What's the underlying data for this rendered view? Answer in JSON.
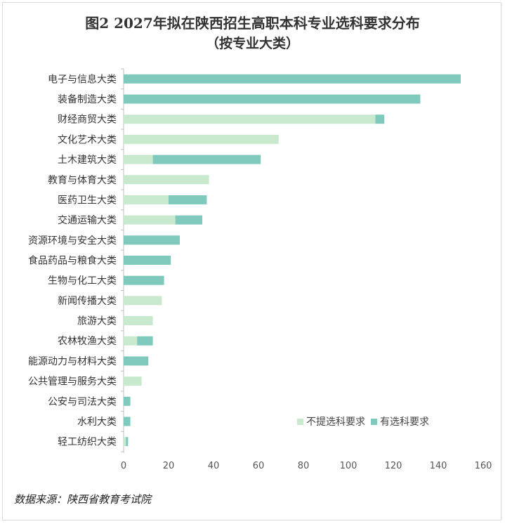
{
  "title": "图2 2027年拟在陕西招生高职本科专业选科要求分布",
  "subtitle": "（按专业大类）",
  "source": "数据来源：陕西省教育考试院",
  "colors": {
    "no_req": "#c9e9cf",
    "has_req": "#7fc9bd",
    "axis": "#bfbfbf"
  },
  "chart_data": {
    "type": "bar",
    "orientation": "horizontal",
    "stacked": true,
    "title": "图2 2027年拟在陕西招生高职本科专业选科要求分布",
    "subtitle": "（按专业大类）",
    "categories": [
      "电子与信息大类",
      "装备制造大类",
      "财经商贸大类",
      "文化艺术大类",
      "土木建筑大类",
      "教育与体育大类",
      "医药卫生大类",
      "交通运输大类",
      "资源环境与安全大类",
      "食品药品与粮食大类",
      "生物与化工大类",
      "新闻传播大类",
      "旅游大类",
      "农林牧渔大类",
      "能源动力与材料大类",
      "公共管理与服务大类",
      "公安与司法大类",
      "水利大类",
      "轻工纺织大类"
    ],
    "series": [
      {
        "name": "不提选科要求",
        "values": [
          0,
          0,
          112,
          69,
          13,
          38,
          20,
          23,
          0,
          0,
          0,
          17,
          13,
          6,
          0,
          8,
          0,
          0,
          1
        ]
      },
      {
        "name": "有选科要求",
        "values": [
          150,
          132,
          4,
          0,
          48,
          0,
          17,
          12,
          25,
          21,
          18,
          0,
          0,
          7,
          11,
          0,
          3,
          3,
          1
        ]
      }
    ],
    "xlim": [
      0,
      160
    ],
    "xticks": [
      0,
      20,
      40,
      60,
      80,
      100,
      120,
      140,
      160
    ],
    "gridlines": false,
    "legend": "bottom-right"
  }
}
